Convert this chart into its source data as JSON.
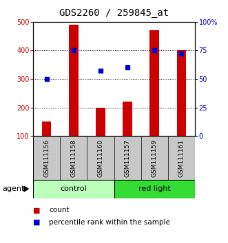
{
  "title": "GDS2260 / 259845_at",
  "categories": [
    "GSM111156",
    "GSM111158",
    "GSM111160",
    "GSM111157",
    "GSM111159",
    "GSM111161"
  ],
  "bar_values": [
    150,
    490,
    200,
    220,
    470,
    400
  ],
  "percentile_values": [
    50,
    75,
    57,
    60,
    75,
    72
  ],
  "bar_color": "#cc0000",
  "percentile_color": "#0000cc",
  "ylim_left": [
    100,
    500
  ],
  "ylim_right": [
    0,
    100
  ],
  "yticks_left": [
    100,
    200,
    300,
    400,
    500
  ],
  "yticks_right": [
    0,
    25,
    50,
    75,
    100
  ],
  "ytick_labels_right": [
    "0",
    "25",
    "50",
    "75",
    "100%"
  ],
  "group_labels": [
    "control",
    "red light"
  ],
  "group_ranges": [
    [
      0,
      3
    ],
    [
      3,
      6
    ]
  ],
  "group_color_control": "#bbffbb",
  "group_color_redlight": "#33dd33",
  "agent_label": "agent",
  "legend_items": [
    "count",
    "percentile rank within the sample"
  ],
  "axis_label_area_color": "#c8c8c8",
  "bar_width": 0.35,
  "title_fontsize": 10,
  "tick_fontsize": 7,
  "label_fontsize": 6.5,
  "group_fontsize": 8,
  "legend_fontsize": 7.5
}
